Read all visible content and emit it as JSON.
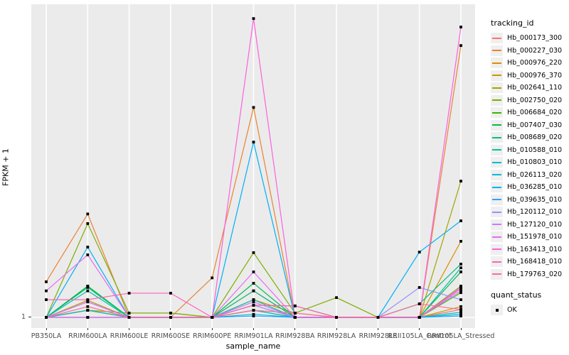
{
  "chart_data": {
    "type": "line",
    "title": "",
    "xlabel": "sample_name",
    "ylabel": "FPKM + 1",
    "y_scale": "log10",
    "y_ticks": [
      "1"
    ],
    "ylim": [
      1,
      1000
    ],
    "grid": true,
    "panel_bg": "#EBEBEB",
    "point_marker": "black-square",
    "categories": [
      "PB350LA",
      "RRIM600LA",
      "RRIM600LE",
      "RRIM600SE",
      "RRIM600PE",
      "RRIM901LA",
      "RRIM928BA",
      "RRIM928LA",
      "RRIM928LE",
      "RRII105LA_Control",
      "RRII105LA_Stressed"
    ],
    "series": [
      {
        "name": "Hb_000173_300",
        "color": "#F8766D",
        "values": [
          1,
          1.17,
          1,
          1,
          1,
          1.31,
          1,
          1,
          1,
          1,
          1.19
        ]
      },
      {
        "name": "Hb_000227_030",
        "color": "#EA8331",
        "values": [
          2.2,
          9.9,
          1,
          1,
          2.4,
          105,
          1,
          1,
          1,
          1,
          414
        ]
      },
      {
        "name": "Hb_000976_220",
        "color": "#D89000",
        "values": [
          1,
          1.17,
          1,
          1,
          1,
          1.8,
          1,
          1,
          1,
          1,
          5.4
        ]
      },
      {
        "name": "Hb_000976_370",
        "color": "#C09B00",
        "values": [
          1,
          1.46,
          1,
          1,
          1,
          1.48,
          1.1,
          1,
          1,
          1,
          1.27
        ]
      },
      {
        "name": "Hb_002641_110",
        "color": "#A3A500",
        "values": [
          1,
          1.17,
          1.1,
          1.1,
          1,
          1.17,
          1,
          1,
          1,
          1,
          20.5
        ]
      },
      {
        "name": "Hb_002750_020",
        "color": "#7CAE00",
        "values": [
          1,
          8.0,
          1.1,
          1.1,
          1,
          4.2,
          1.1,
          1.55,
          1,
          1,
          2.0
        ]
      },
      {
        "name": "Hb_006684_020",
        "color": "#39B600",
        "values": [
          1,
          2.0,
          1,
          1,
          1,
          1.31,
          1.29,
          1,
          1,
          1,
          1.73
        ]
      },
      {
        "name": "Hb_007407_030",
        "color": "#00BB4E",
        "values": [
          1,
          2.0,
          1,
          1,
          1,
          2.13,
          1,
          1,
          1,
          1,
          2.74
        ]
      },
      {
        "name": "Hb_008689_020",
        "color": "#00BF7D",
        "values": [
          1,
          1.94,
          1,
          1,
          1,
          1.8,
          1,
          1,
          1,
          1.35,
          3.26
        ]
      },
      {
        "name": "Hb_010588_010",
        "color": "#00C1A3",
        "values": [
          1,
          1.8,
          1,
          1,
          1,
          1.48,
          1,
          1,
          1,
          1,
          3.0
        ]
      },
      {
        "name": "Hb_010803_010",
        "color": "#00BFC4",
        "values": [
          1,
          1.17,
          1,
          1,
          1,
          1.17,
          1,
          1,
          1,
          1,
          1.12
        ]
      },
      {
        "name": "Hb_026113_020",
        "color": "#00BAE0",
        "values": [
          1,
          1,
          1,
          1,
          1,
          1.07,
          1,
          1,
          1,
          1,
          1.07
        ]
      },
      {
        "name": "Hb_036285_010",
        "color": "#00B0F6",
        "values": [
          1,
          4.75,
          1,
          1,
          1,
          48.7,
          1,
          1,
          1,
          4.25,
          8.5
        ]
      },
      {
        "name": "Hb_039635_010",
        "color": "#35A2FF",
        "values": [
          1,
          1,
          1,
          1,
          1,
          1.03,
          1,
          1,
          1,
          1,
          1.03
        ]
      },
      {
        "name": "Hb_120112_010",
        "color": "#9590FF",
        "values": [
          1,
          1.41,
          1,
          1,
          1,
          1.31,
          1,
          1,
          1,
          1.94,
          1.48
        ]
      },
      {
        "name": "Hb_127120_010",
        "color": "#C77CFF",
        "values": [
          1,
          1.41,
          1,
          1,
          1,
          1.41,
          1,
          1,
          1,
          1,
          1.8
        ]
      },
      {
        "name": "Hb_151978_010",
        "color": "#E76BF3",
        "values": [
          1.8,
          4.0,
          1,
          1,
          1,
          2.74,
          1,
          1,
          1,
          1,
          1.94
        ]
      },
      {
        "name": "Hb_163413_010",
        "color": "#FA62DB",
        "values": [
          1,
          1,
          1,
          1,
          1,
          753,
          1,
          1,
          1,
          1,
          624
        ]
      },
      {
        "name": "Hb_168418_010",
        "color": "#FF62BC",
        "values": [
          1.48,
          1.48,
          1.71,
          1.71,
          1,
          1.31,
          1.29,
          1,
          1,
          1,
          1.88
        ]
      },
      {
        "name": "Hb_179763_020",
        "color": "#FF6A98",
        "values": [
          1,
          1.27,
          1,
          1,
          1,
          1.17,
          1.1,
          1,
          1,
          1.35,
          1.19
        ]
      }
    ],
    "legend": {
      "position": "right",
      "color_title": "tracking_id",
      "shape_title": "quant_status",
      "shape_items": [
        {
          "label": "OK",
          "marker": "black-square"
        }
      ]
    }
  }
}
